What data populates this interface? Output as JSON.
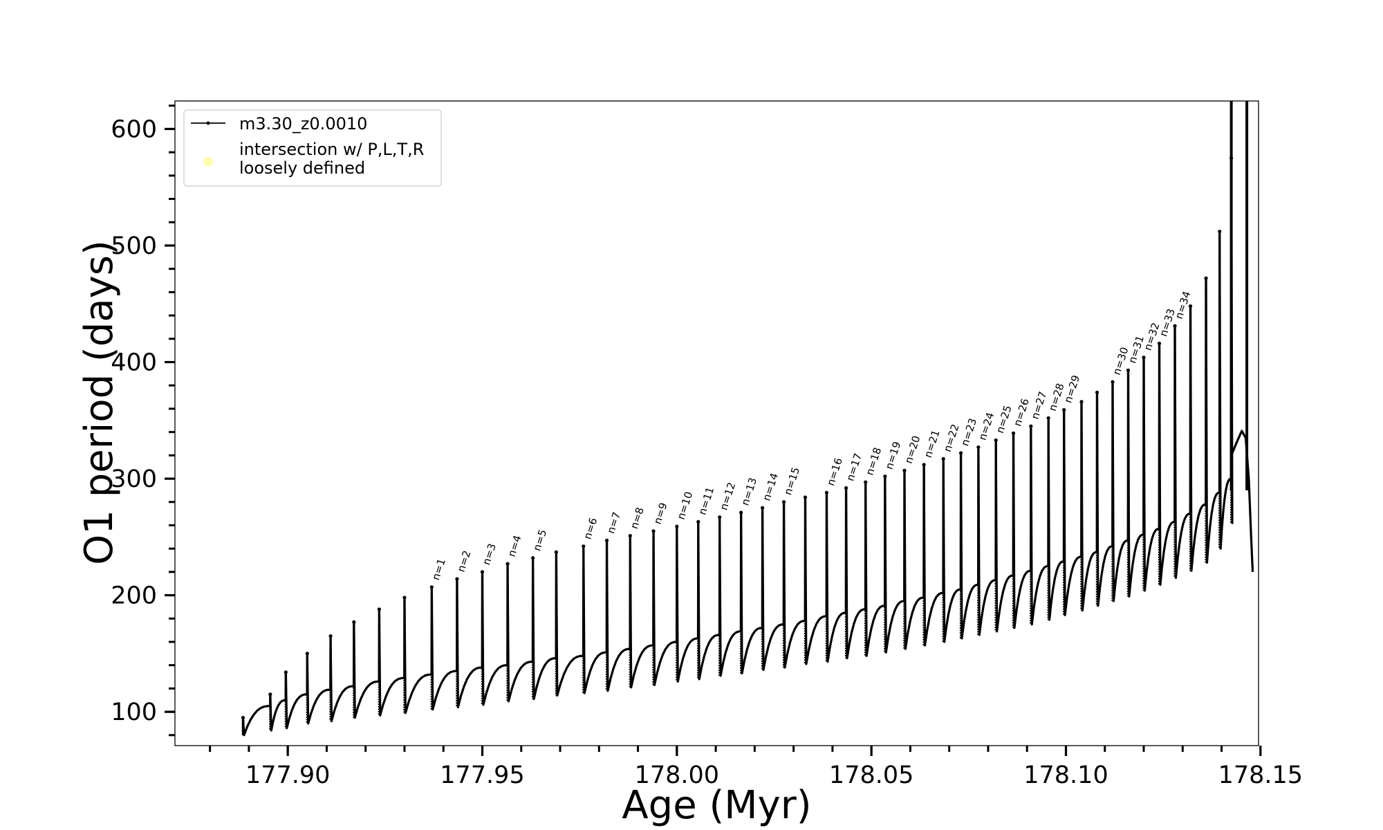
{
  "chart_data": {
    "type": "line",
    "xlabel": "Age (Myr)",
    "ylabel": "O1 period (days)",
    "xlim": [
      177.871,
      178.1495
    ],
    "ylim": [
      71,
      624
    ],
    "x_ticks": [
      177.9,
      177.95,
      178.0,
      178.05,
      178.1,
      178.15
    ],
    "x_tick_labels": [
      "177.90",
      "177.95",
      "178.00",
      "178.05",
      "178.10",
      "178.15"
    ],
    "y_ticks": [
      100,
      200,
      300,
      400,
      500,
      600
    ],
    "y_tick_labels": [
      "100",
      "200",
      "300",
      "400",
      "500",
      "600"
    ],
    "grid": false,
    "legend": {
      "placement": "upper-left",
      "entries": [
        {
          "label": "m3.30_z0.0010",
          "marker": "line-dot",
          "color": "#000000"
        },
        {
          "label_lines": [
            "intersection w/ P,L,T,R",
            "loosely defined"
          ],
          "marker": "circle",
          "color": "#fffbb0"
        }
      ]
    },
    "series": [
      {
        "name": "m3.30_z0.0010",
        "color": "#000000",
        "start": {
          "x": 177.8885,
          "y": 80
        },
        "pulses": [
          {
            "x": 177.8885,
            "peak": 95,
            "base": 80,
            "end": 105
          },
          {
            "x": 177.8955,
            "peak": 115,
            "base": 84,
            "end": 110
          },
          {
            "x": 177.8995,
            "peak": 134,
            "base": 86,
            "end": 115
          },
          {
            "x": 177.905,
            "peak": 150,
            "base": 90,
            "end": 119
          },
          {
            "x": 177.911,
            "peak": 165,
            "base": 92,
            "end": 122
          },
          {
            "x": 177.917,
            "peak": 177,
            "base": 95,
            "end": 126
          },
          {
            "x": 177.9235,
            "peak": 188,
            "base": 97,
            "end": 129
          },
          {
            "x": 177.93,
            "peak": 198,
            "base": 99,
            "end": 132
          },
          {
            "x": 177.937,
            "peak": 207,
            "base": 102,
            "end": 135
          },
          {
            "x": 177.9435,
            "peak": 214,
            "base": 104,
            "end": 138
          },
          {
            "x": 177.95,
            "peak": 220,
            "base": 106,
            "end": 140
          },
          {
            "x": 177.9565,
            "peak": 227,
            "base": 109,
            "end": 143
          },
          {
            "x": 177.963,
            "peak": 232,
            "base": 111,
            "end": 146
          },
          {
            "x": 177.969,
            "peak": 237,
            "base": 114,
            "end": 148
          },
          {
            "x": 177.976,
            "peak": 242,
            "base": 116,
            "end": 151
          },
          {
            "x": 177.982,
            "peak": 247,
            "base": 118,
            "end": 154
          },
          {
            "x": 177.988,
            "peak": 251,
            "base": 121,
            "end": 157
          },
          {
            "x": 177.994,
            "peak": 255,
            "base": 123,
            "end": 160
          },
          {
            "x": 178.0,
            "peak": 259,
            "base": 126,
            "end": 163
          },
          {
            "x": 178.0055,
            "peak": 263,
            "base": 128,
            "end": 166
          },
          {
            "x": 178.011,
            "peak": 267,
            "base": 131,
            "end": 169
          },
          {
            "x": 178.0165,
            "peak": 271,
            "base": 133,
            "end": 172
          },
          {
            "x": 178.022,
            "peak": 275,
            "base": 136,
            "end": 175
          },
          {
            "x": 178.0275,
            "peak": 280,
            "base": 138,
            "end": 178
          },
          {
            "x": 178.033,
            "peak": 284,
            "base": 141,
            "end": 182
          },
          {
            "x": 178.0385,
            "peak": 288,
            "base": 143,
            "end": 185
          },
          {
            "x": 178.0435,
            "peak": 292,
            "base": 146,
            "end": 188
          },
          {
            "x": 178.0485,
            "peak": 297,
            "base": 148,
            "end": 191
          },
          {
            "x": 178.0535,
            "peak": 302,
            "base": 151,
            "end": 195
          },
          {
            "x": 178.0585,
            "peak": 307,
            "base": 154,
            "end": 198
          },
          {
            "x": 178.0635,
            "peak": 312,
            "base": 157,
            "end": 202
          },
          {
            "x": 178.0685,
            "peak": 317,
            "base": 160,
            "end": 205
          },
          {
            "x": 178.073,
            "peak": 322,
            "base": 163,
            "end": 209
          },
          {
            "x": 178.0775,
            "peak": 327,
            "base": 166,
            "end": 213
          },
          {
            "x": 178.082,
            "peak": 333,
            "base": 169,
            "end": 217
          },
          {
            "x": 178.0865,
            "peak": 339,
            "base": 172,
            "end": 221
          },
          {
            "x": 178.091,
            "peak": 345,
            "base": 175,
            "end": 225
          },
          {
            "x": 178.0955,
            "peak": 352,
            "base": 179,
            "end": 229
          },
          {
            "x": 178.0995,
            "peak": 359,
            "base": 183,
            "end": 233
          },
          {
            "x": 178.104,
            "peak": 366,
            "base": 187,
            "end": 237
          },
          {
            "x": 178.108,
            "peak": 374,
            "base": 191,
            "end": 242
          },
          {
            "x": 178.112,
            "peak": 383,
            "base": 195,
            "end": 247
          },
          {
            "x": 178.116,
            "peak": 393,
            "base": 199,
            "end": 252
          },
          {
            "x": 178.12,
            "peak": 404,
            "base": 204,
            "end": 257
          },
          {
            "x": 178.124,
            "peak": 416,
            "base": 209,
            "end": 263
          },
          {
            "x": 178.128,
            "peak": 431,
            "base": 215,
            "end": 270
          },
          {
            "x": 178.132,
            "peak": 448,
            "base": 221,
            "end": 278
          },
          {
            "x": 178.136,
            "peak": 472,
            "base": 228,
            "end": 288
          },
          {
            "x": 178.1395,
            "peak": 512,
            "base": 240,
            "end": 300
          },
          {
            "x": 178.1425,
            "peak": 575,
            "base": 262,
            "end": 320
          }
        ],
        "end_segment": [
          {
            "x": 178.1425,
            "y": 320
          },
          {
            "x": 178.144,
            "y": 332
          },
          {
            "x": 178.1452,
            "y": 341
          },
          {
            "x": 178.1462,
            "y": 335
          },
          {
            "x": 178.147,
            "y": 300
          },
          {
            "x": 178.1476,
            "y": 250
          },
          {
            "x": 178.148,
            "y": 220
          }
        ],
        "vertical_spikes": [
          {
            "x": 178.1425,
            "y_from": 290,
            "y_to": 624
          },
          {
            "x": 178.1465,
            "y_from": 290,
            "y_to": 624
          }
        ]
      }
    ],
    "annotations": [
      {
        "text": "n=1",
        "x": 177.937,
        "y": 210
      },
      {
        "text": "n=2",
        "x": 177.9435,
        "y": 217
      },
      {
        "text": "n=3",
        "x": 177.95,
        "y": 223
      },
      {
        "text": "n=4",
        "x": 177.9565,
        "y": 230
      },
      {
        "text": "n=5",
        "x": 177.963,
        "y": 235
      },
      {
        "text": "n=6",
        "x": 177.976,
        "y": 245
      },
      {
        "text": "n=7",
        "x": 177.982,
        "y": 250
      },
      {
        "text": "n=8",
        "x": 177.988,
        "y": 254
      },
      {
        "text": "n=9",
        "x": 177.994,
        "y": 258
      },
      {
        "text": "n=10",
        "x": 178.0,
        "y": 262
      },
      {
        "text": "n=11",
        "x": 178.0055,
        "y": 266
      },
      {
        "text": "n=12",
        "x": 178.011,
        "y": 270
      },
      {
        "text": "n=13",
        "x": 178.0165,
        "y": 274
      },
      {
        "text": "n=14",
        "x": 178.022,
        "y": 278
      },
      {
        "text": "n=15",
        "x": 178.0275,
        "y": 283
      },
      {
        "text": "n=16",
        "x": 178.0385,
        "y": 291
      },
      {
        "text": "n=17",
        "x": 178.0435,
        "y": 295
      },
      {
        "text": "n=18",
        "x": 178.0485,
        "y": 300
      },
      {
        "text": "n=19",
        "x": 178.0535,
        "y": 305
      },
      {
        "text": "n=20",
        "x": 178.0585,
        "y": 310
      },
      {
        "text": "n=21",
        "x": 178.0635,
        "y": 315
      },
      {
        "text": "n=22",
        "x": 178.0685,
        "y": 320
      },
      {
        "text": "n=23",
        "x": 178.073,
        "y": 325
      },
      {
        "text": "n=24",
        "x": 178.0775,
        "y": 330
      },
      {
        "text": "n=25",
        "x": 178.082,
        "y": 336
      },
      {
        "text": "n=26",
        "x": 178.0865,
        "y": 342
      },
      {
        "text": "n=27",
        "x": 178.091,
        "y": 348
      },
      {
        "text": "n=28",
        "x": 178.0955,
        "y": 355
      },
      {
        "text": "n=29",
        "x": 178.0995,
        "y": 362
      },
      {
        "text": "n=30",
        "x": 178.112,
        "y": 386
      },
      {
        "text": "n=31",
        "x": 178.116,
        "y": 396
      },
      {
        "text": "n=32",
        "x": 178.12,
        "y": 407
      },
      {
        "text": "n=33",
        "x": 178.124,
        "y": 419
      },
      {
        "text": "n=34",
        "x": 178.128,
        "y": 434
      }
    ]
  }
}
